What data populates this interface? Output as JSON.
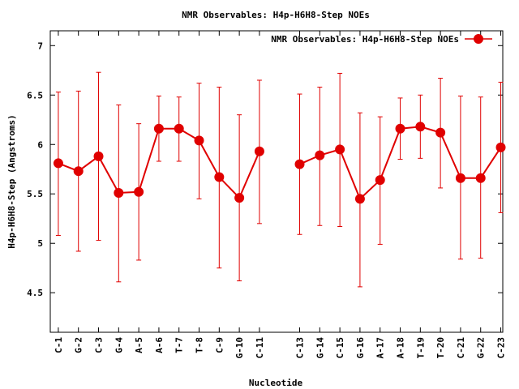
{
  "chart_data": {
    "type": "line",
    "title": "NMR Observables: H4p-H6H8-Step NOEs",
    "xlabel": "Nucleotide",
    "ylabel": "H4p-H6H8-Step (Angstroms)",
    "ylim": [
      4.1,
      7.15
    ],
    "yticks": [
      4.5,
      5,
      5.5,
      6,
      6.5,
      7
    ],
    "grid": false,
    "legend_position": "top-right",
    "color": "#e00000",
    "series": [
      {
        "name": "NMR Observables: H4p-H6H8-Step NOEs",
        "points": [
          {
            "x": 1,
            "label": "C-1",
            "y": 5.81,
            "low": 5.08,
            "high": 6.53
          },
          {
            "x": 2,
            "label": "G-2",
            "y": 5.73,
            "low": 4.92,
            "high": 6.54
          },
          {
            "x": 3,
            "label": "C-3",
            "y": 5.88,
            "low": 5.03,
            "high": 6.73
          },
          {
            "x": 4,
            "label": "G-4",
            "y": 5.51,
            "low": 4.61,
            "high": 6.4
          },
          {
            "x": 5,
            "label": "A-5",
            "y": 5.52,
            "low": 4.83,
            "high": 6.21
          },
          {
            "x": 6,
            "label": "A-6",
            "y": 6.16,
            "low": 5.83,
            "high": 6.49
          },
          {
            "x": 7,
            "label": "T-7",
            "y": 6.16,
            "low": 5.83,
            "high": 6.48
          },
          {
            "x": 8,
            "label": "T-8",
            "y": 6.04,
            "low": 5.45,
            "high": 6.62
          },
          {
            "x": 9,
            "label": "C-9",
            "y": 5.67,
            "low": 4.75,
            "high": 6.58
          },
          {
            "x": 10,
            "label": "G-10",
            "y": 5.46,
            "low": 4.62,
            "high": 6.3
          },
          {
            "x": 11,
            "label": "C-11",
            "y": 5.93,
            "low": 5.2,
            "high": 6.65
          },
          {
            "x": 13,
            "label": "C-13",
            "y": 5.8,
            "low": 5.09,
            "high": 6.51
          },
          {
            "x": 14,
            "label": "G-14",
            "y": 5.89,
            "low": 5.18,
            "high": 6.58
          },
          {
            "x": 15,
            "label": "C-15",
            "y": 5.95,
            "low": 5.17,
            "high": 6.72
          },
          {
            "x": 16,
            "label": "G-16",
            "y": 5.45,
            "low": 4.56,
            "high": 6.32
          },
          {
            "x": 17,
            "label": "A-17",
            "y": 5.64,
            "low": 4.99,
            "high": 6.28
          },
          {
            "x": 18,
            "label": "A-18",
            "y": 6.16,
            "low": 5.85,
            "high": 6.47
          },
          {
            "x": 19,
            "label": "T-19",
            "y": 6.18,
            "low": 5.86,
            "high": 6.5
          },
          {
            "x": 20,
            "label": "T-20",
            "y": 6.12,
            "low": 5.56,
            "high": 6.67
          },
          {
            "x": 21,
            "label": "C-21",
            "y": 5.66,
            "low": 4.84,
            "high": 6.49
          },
          {
            "x": 22,
            "label": "G-22",
            "y": 5.66,
            "low": 4.85,
            "high": 6.48
          },
          {
            "x": 23,
            "label": "C-23",
            "y": 5.97,
            "low": 5.31,
            "high": 6.63
          }
        ]
      }
    ]
  }
}
